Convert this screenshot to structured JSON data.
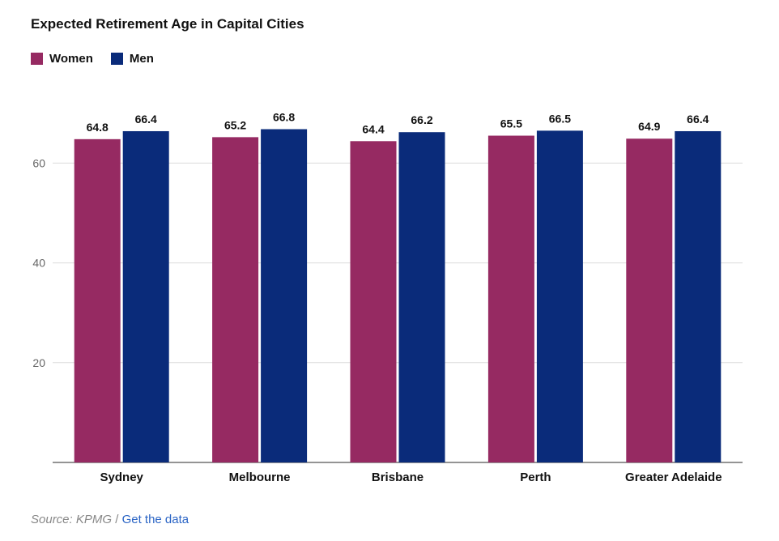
{
  "chart_data": {
    "type": "bar",
    "title": "Expected Retirement Age in Capital Cities",
    "categories": [
      "Sydney",
      "Melbourne",
      "Brisbane",
      "Perth",
      "Greater Adelaide"
    ],
    "series": [
      {
        "name": "Women",
        "color": "#962a62",
        "values": [
          64.8,
          65.2,
          64.4,
          65.5,
          64.9
        ]
      },
      {
        "name": "Men",
        "color": "#0a2b7a",
        "values": [
          66.4,
          66.8,
          66.2,
          66.5,
          66.4
        ]
      }
    ],
    "yticks": [
      20,
      40,
      60
    ],
    "ylim": [
      0,
      70
    ],
    "grid": true,
    "legend_position": "top-left",
    "data_labels": true
  },
  "footer": {
    "source": "Source: KPMG",
    "separator": " / ",
    "link_label": "Get the data"
  }
}
